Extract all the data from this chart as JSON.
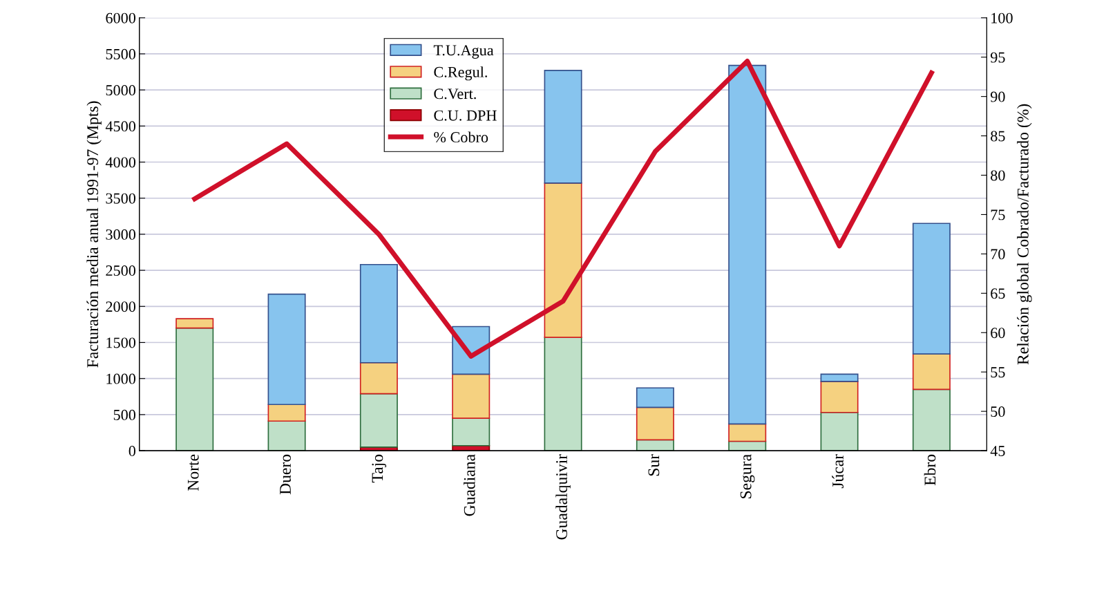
{
  "chart_data": {
    "type": "bar",
    "stacked": true,
    "categories": [
      "Norte",
      "Duero",
      "Tajo",
      "Guadiana",
      "Guadalquivir",
      "Sur",
      "Segura",
      "Júcar",
      "Ebro"
    ],
    "ylabel": "Facturación media anual 1991-97 (Mpts)",
    "y2label": "Relación global Cobrado/Facturado (%)",
    "ylim": [
      0,
      6000
    ],
    "yticks": [
      0,
      500,
      1000,
      1500,
      2000,
      2500,
      3000,
      3500,
      4000,
      4500,
      5000,
      5500,
      6000
    ],
    "y2lim": [
      45,
      100
    ],
    "y2ticks": [
      45,
      50,
      55,
      60,
      65,
      70,
      75,
      80,
      85,
      90,
      95,
      100
    ],
    "grid": "y",
    "legend": "top left",
    "series": [
      {
        "name": "C.U. DPH",
        "color": "#d0102a",
        "values": [
          null,
          null,
          50,
          70,
          null,
          null,
          null,
          null,
          null
        ]
      },
      {
        "name": "C.Vert.",
        "color": "#bfe0c8",
        "values": [
          1700,
          410,
          740,
          380,
          1570,
          150,
          130,
          530,
          850
        ]
      },
      {
        "name": "C.Regul.",
        "color": "#f5d180",
        "values": [
          130,
          230,
          430,
          610,
          2140,
          450,
          240,
          430,
          490
        ]
      },
      {
        "name": "T.U.Agua",
        "color": "#87c4ee",
        "values": [
          null,
          1530,
          1360,
          660,
          1560,
          270,
          4970,
          100,
          1810
        ]
      },
      {
        "name": "% Cobro",
        "type": "line",
        "axis": "y2",
        "color": "#d0102a",
        "values": [
          77,
          84,
          72.5,
          57,
          64,
          83,
          94.5,
          71,
          93
        ]
      }
    ]
  }
}
